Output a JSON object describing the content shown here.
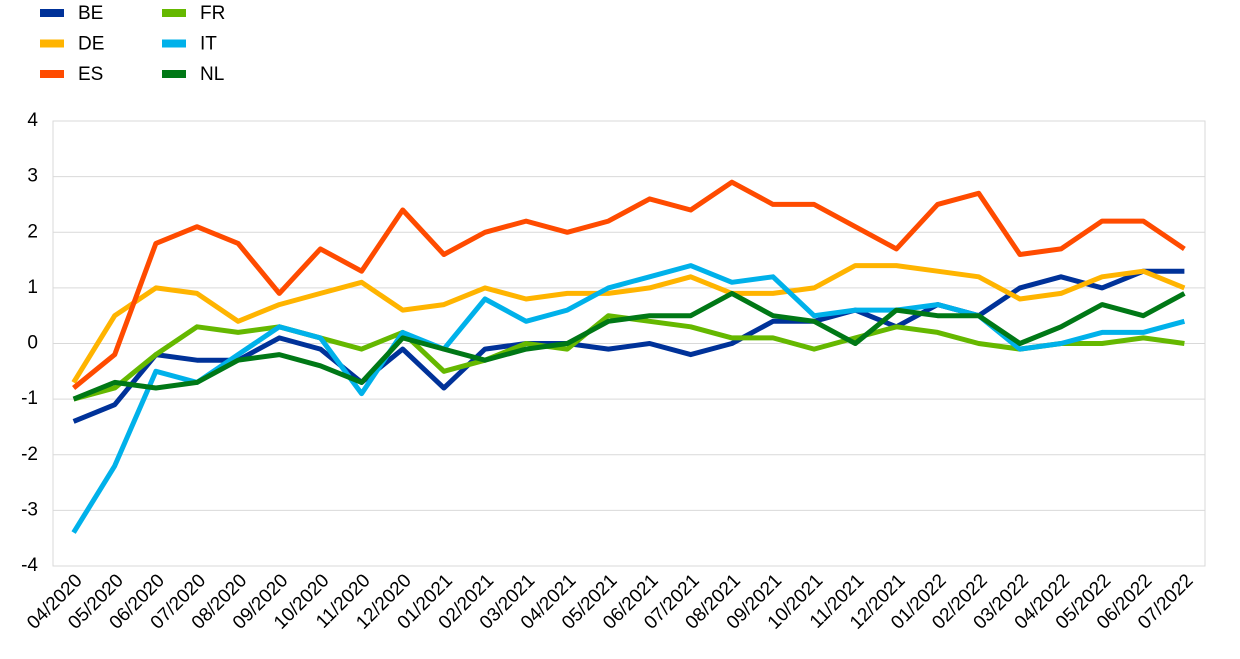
{
  "chart_data": {
    "type": "line",
    "categories": [
      "04/2020",
      "05/2020",
      "06/2020",
      "07/2020",
      "08/2020",
      "09/2020",
      "10/2020",
      "11/2020",
      "12/2020",
      "01/2021",
      "02/2021",
      "03/2021",
      "04/2021",
      "05/2021",
      "06/2021",
      "07/2021",
      "08/2021",
      "09/2021",
      "10/2021",
      "11/2021",
      "12/2021",
      "01/2022",
      "02/2022",
      "03/2022",
      "04/2022",
      "05/2022",
      "06/2022",
      "07/2022"
    ],
    "series": [
      {
        "name": "BE",
        "color": "#003299",
        "values": [
          -1.4,
          -1.1,
          -0.2,
          -0.3,
          -0.3,
          0.1,
          -0.1,
          -0.7,
          -0.1,
          -0.8,
          -0.1,
          0,
          0,
          -0.1,
          0,
          -0.2,
          0,
          0.4,
          0.4,
          0.6,
          0.3,
          0.7,
          0.5,
          1.0,
          1.2,
          1.0,
          1.3,
          1.3
        ]
      },
      {
        "name": "DE",
        "color": "#ffb400",
        "values": [
          -0.7,
          0.5,
          1.0,
          0.9,
          0.4,
          0.7,
          0.9,
          1.1,
          0.6,
          0.7,
          1.0,
          0.8,
          0.9,
          0.9,
          1.0,
          1.2,
          0.9,
          0.9,
          1.0,
          1.4,
          1.4,
          1.3,
          1.2,
          0.8,
          0.9,
          1.2,
          1.3,
          1.0
        ]
      },
      {
        "name": "ES",
        "color": "#ff4b00",
        "values": [
          -0.8,
          -0.2,
          1.8,
          2.1,
          1.8,
          0.9,
          1.7,
          1.3,
          2.4,
          1.6,
          2.0,
          2.2,
          2.0,
          2.2,
          2.6,
          2.4,
          2.9,
          2.5,
          2.5,
          2.1,
          1.7,
          2.5,
          2.7,
          1.6,
          1.7,
          2.2,
          2.2,
          1.7
        ]
      },
      {
        "name": "FR",
        "color": "#65b800",
        "values": [
          -1.0,
          -0.8,
          -0.2,
          0.3,
          0.2,
          0.3,
          0.1,
          -0.1,
          0.2,
          -0.5,
          -0.3,
          0,
          -0.1,
          0.5,
          0.4,
          0.3,
          0.1,
          0.1,
          -0.1,
          0.1,
          0.3,
          0.2,
          0,
          -0.1,
          0,
          0,
          0.1,
          0
        ]
      },
      {
        "name": "IT",
        "color": "#00b1ea",
        "values": [
          -3.4,
          -2.2,
          -0.5,
          -0.7,
          -0.2,
          0.3,
          0.1,
          -0.9,
          0.2,
          -0.1,
          0.8,
          0.4,
          0.6,
          1.0,
          1.2,
          1.4,
          1.1,
          1.2,
          0.5,
          0.6,
          0.6,
          0.7,
          0.5,
          -0.1,
          0,
          0.2,
          0.2,
          0.4
        ]
      },
      {
        "name": "NL",
        "color": "#007816",
        "values": [
          -1.0,
          -0.7,
          -0.8,
          -0.7,
          -0.3,
          -0.2,
          -0.4,
          -0.7,
          0.1,
          -0.1,
          -0.3,
          -0.1,
          0,
          0.4,
          0.5,
          0.5,
          0.9,
          0.5,
          0.4,
          0,
          0.6,
          0.5,
          0.5,
          0,
          0.3,
          0.7,
          0.5,
          0.9
        ]
      }
    ],
    "ylim": [
      -4,
      4
    ],
    "yticks": [
      -4,
      -3,
      -2,
      -1,
      0,
      1,
      2,
      3,
      4
    ],
    "grid": true
  }
}
